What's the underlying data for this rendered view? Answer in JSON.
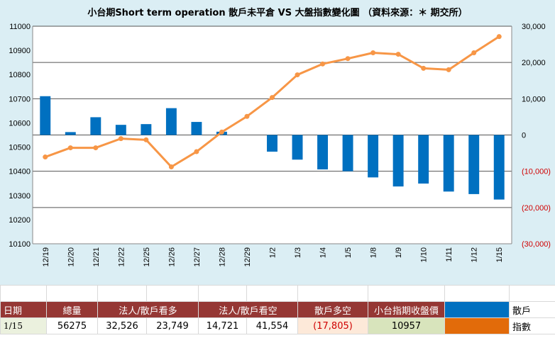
{
  "chart_data": {
    "type": "bar+line",
    "title": "小台期Short term operation 散戶未平倉 VS 大盤指數變化圖 （資料來源：＊ 期交所）",
    "categories": [
      "12/19",
      "12/20",
      "12/21",
      "12/22",
      "12/25",
      "12/26",
      "12/27",
      "12/28",
      "12/29",
      "1/2",
      "1/3",
      "1/4",
      "1/5",
      "1/8",
      "1/9",
      "1/10",
      "1/11",
      "1/12",
      "1/15"
    ],
    "left_axis": {
      "min": 10100,
      "max": 11000,
      "ticks": [
        "10100",
        "10200",
        "10300",
        "10400",
        "10500",
        "10600",
        "10700",
        "10800",
        "10900",
        "11000"
      ]
    },
    "right_axis": {
      "min": -30000,
      "max": 30000,
      "ticks": [
        "(30,000)",
        "(20,000)",
        "(10,000)",
        "0",
        "10,000",
        "20,000",
        "30,000"
      ]
    },
    "series": [
      {
        "name": "散戶",
        "axis": "right",
        "kind": "bar",
        "color": "#0070c0",
        "values": [
          10700,
          800,
          4900,
          2800,
          3000,
          7400,
          3600,
          900,
          null,
          -4600,
          -6800,
          -9500,
          -10000,
          -11700,
          -14200,
          -13400,
          -15600,
          -16300,
          -17805
        ]
      },
      {
        "name": "指數",
        "axis": "left",
        "kind": "line",
        "color": "#f79646",
        "values": [
          10459,
          10497,
          10497,
          10535,
          10530,
          10418,
          10481,
          10562,
          10627,
          10705,
          10799,
          10844,
          10866,
          10890,
          10884,
          10826,
          10820,
          10890,
          10957
        ]
      }
    ]
  },
  "table": {
    "headers": {
      "date": "日期",
      "total": "總量",
      "long": "法人/散戶看多",
      "short": "法人/散戶看空",
      "net": "散戶多空",
      "close": "小台指期收盤價"
    },
    "row": {
      "date": "1/15",
      "total": "56275",
      "long_inst": "32,526",
      "long_retail": "23,749",
      "short_inst": "14,721",
      "short_retail": "41,554",
      "net": "(17,805)",
      "close": "10957"
    },
    "legend": [
      {
        "label": "散戶",
        "color": "#0070c0"
      },
      {
        "label": "指數",
        "color": "#e26b0a"
      }
    ]
  }
}
